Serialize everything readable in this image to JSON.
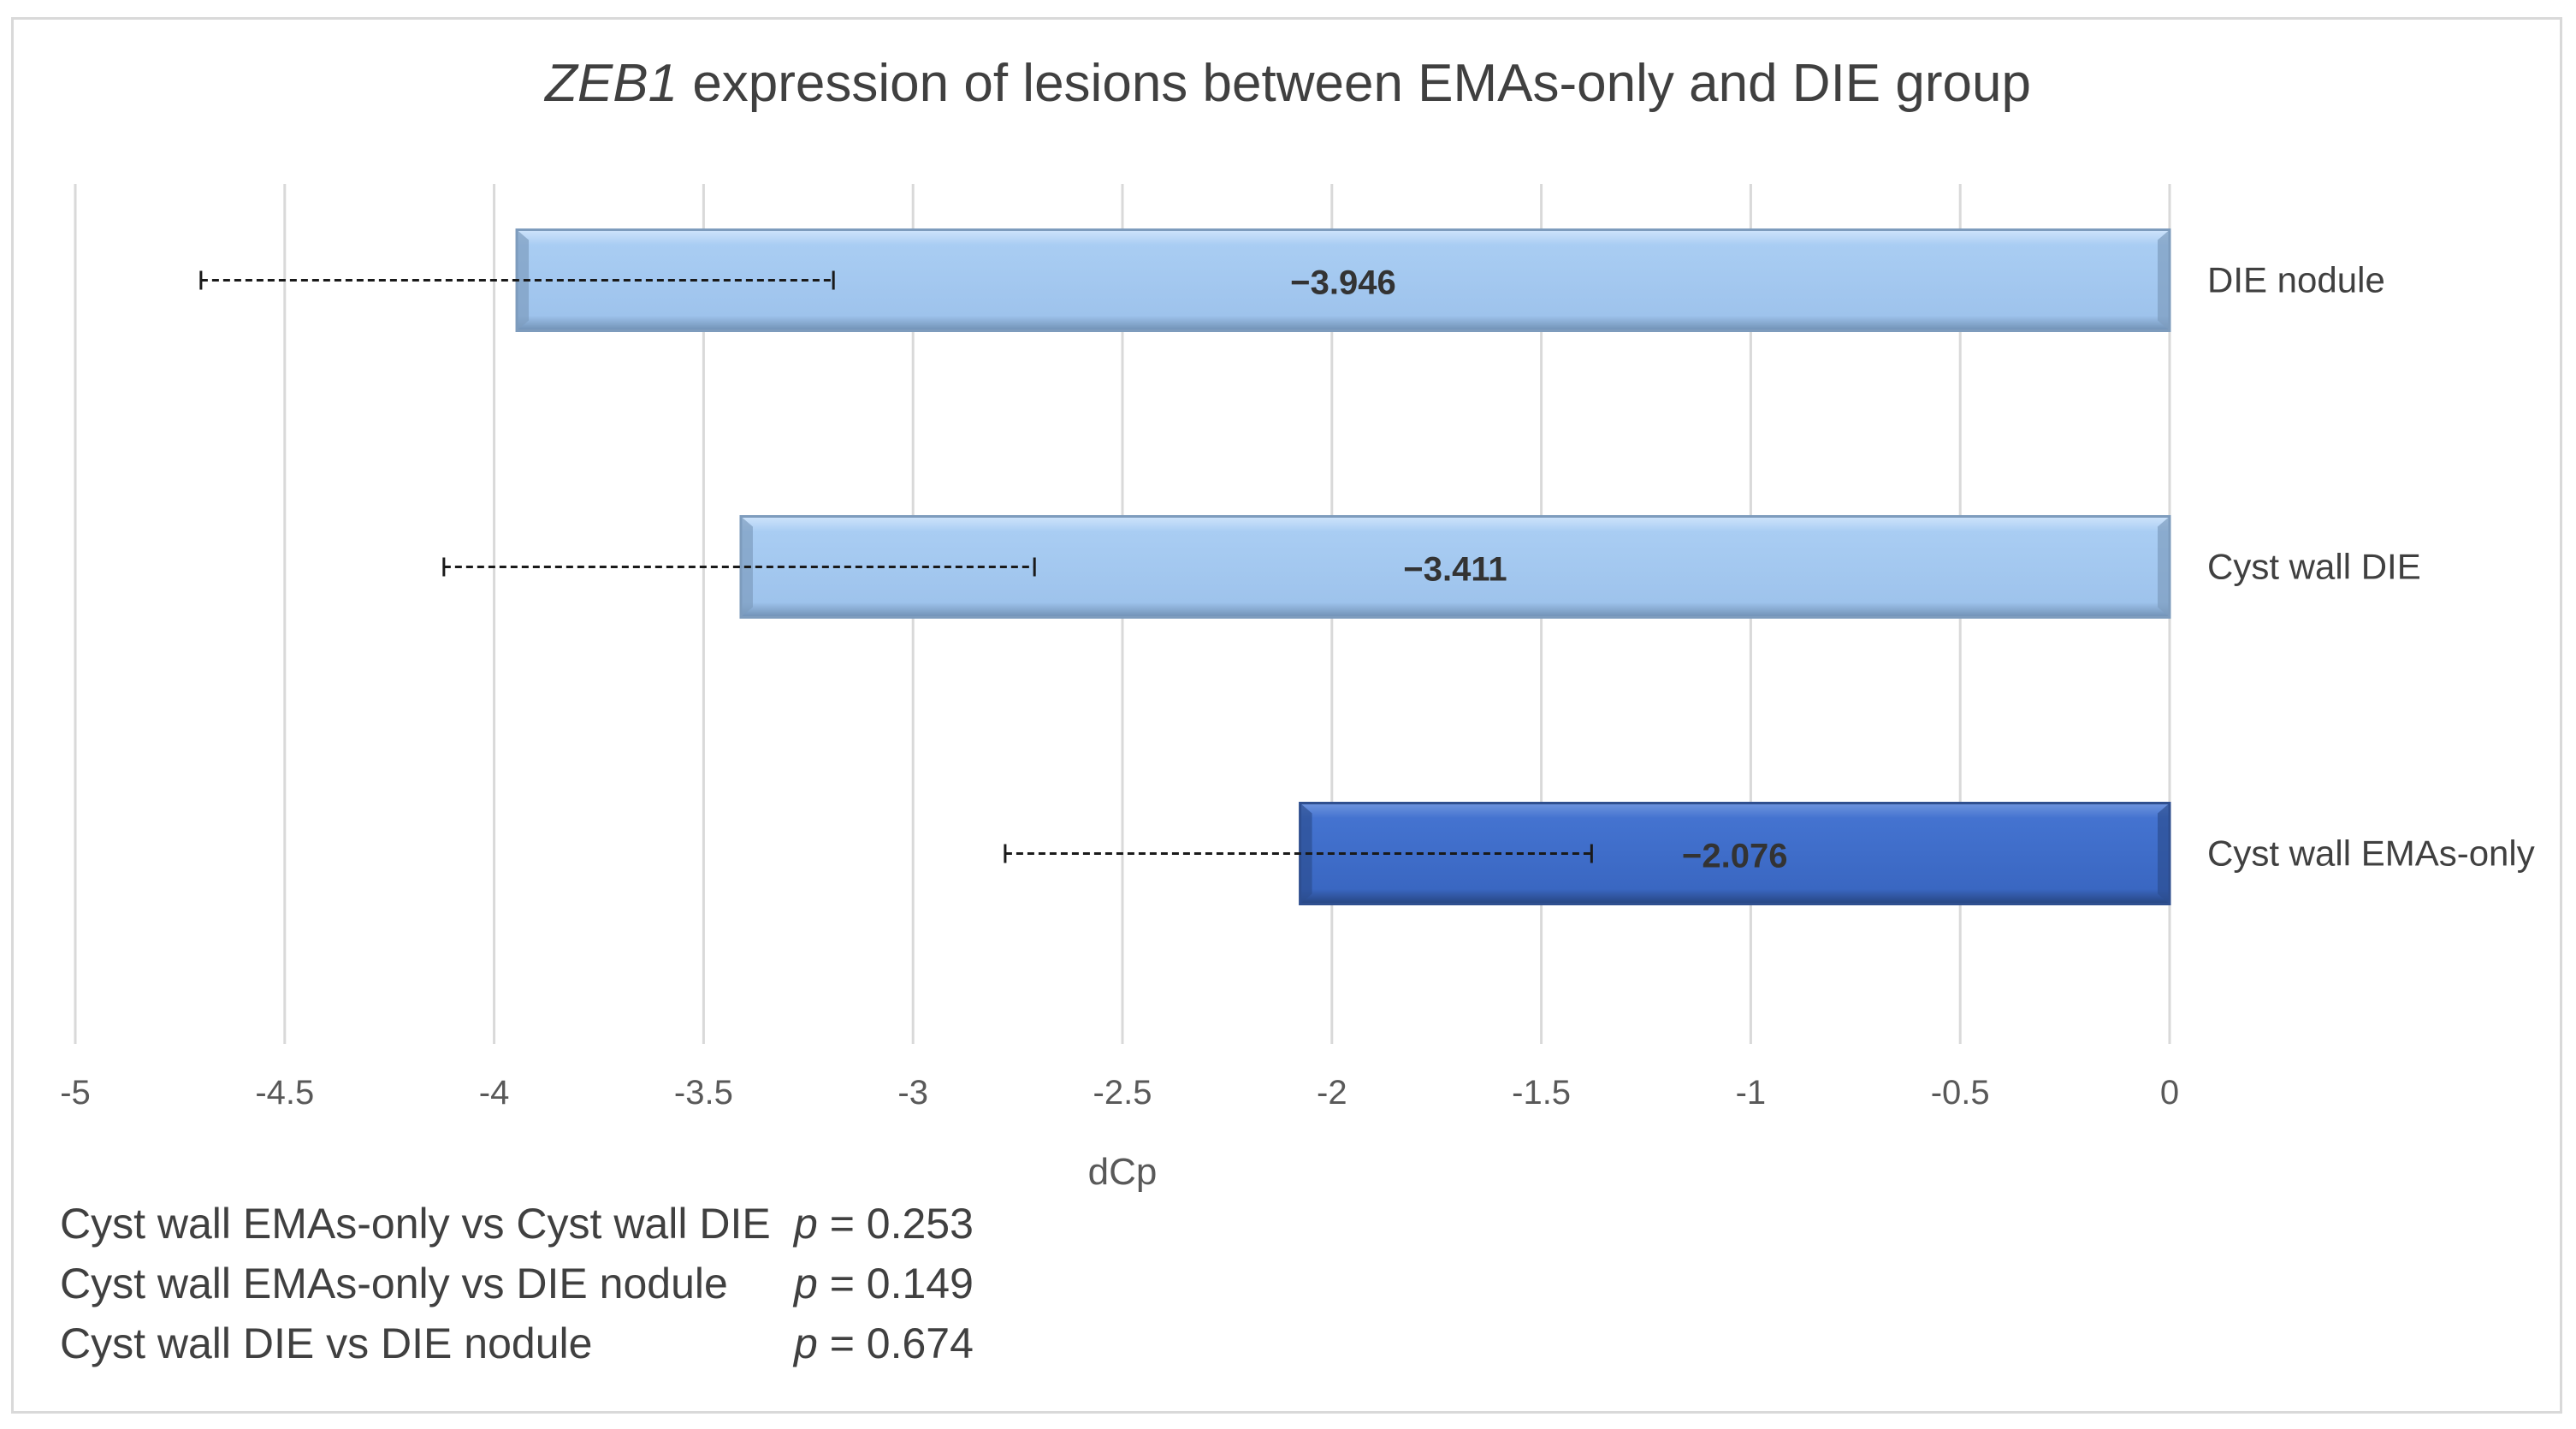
{
  "chart_data": {
    "type": "bar",
    "orientation": "horizontal",
    "title_italic": "ZEB1",
    "title_rest": " expression of lesions between EMAs-only and DIE group",
    "xlabel": "dCp",
    "ylabel": "",
    "xlim": [
      -5,
      0
    ],
    "xticks": [
      "-5",
      "-4.5",
      "-4",
      "-3.5",
      "-3",
      "-2.5",
      "-2",
      "-1.5",
      "-1",
      "-0.5",
      "0"
    ],
    "grid": "vertical",
    "categories": [
      "DIE nodule",
      "Cyst wall DIE",
      "Cyst wall EMAs-only"
    ],
    "values": [
      -3.946,
      -3.411,
      -2.076
    ],
    "value_labels": [
      "−3.946",
      "−3.411",
      "−2.076"
    ],
    "error_low": [
      -4.7,
      -4.12,
      -2.78
    ],
    "error_high": [
      -3.19,
      -2.71,
      -1.38
    ],
    "colors": [
      "#a9cdf3",
      "#a9cdf3",
      "#3f6fcc"
    ]
  },
  "stats": [
    {
      "comparison": "Cyst wall EMAs-only vs Cyst wall DIE",
      "p_symbol": "p",
      "p_value": " = 0.253"
    },
    {
      "comparison": "Cyst wall EMAs-only vs DIE nodule",
      "p_symbol": "p",
      "p_value": " = 0.149"
    },
    {
      "comparison": "Cyst wall DIE vs DIE nodule",
      "p_symbol": "p",
      "p_value": " = 0.674"
    }
  ]
}
